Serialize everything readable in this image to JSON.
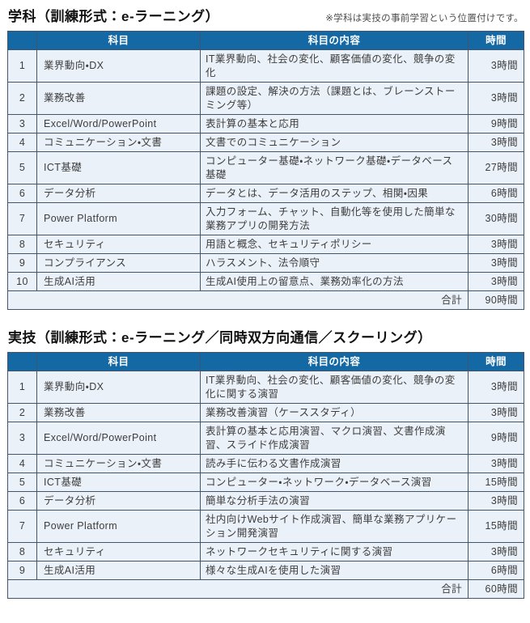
{
  "section1": {
    "title": "学科（訓練形式：e-ラーニング）",
    "note": "※学科は実技の事前学習という位置付けです。",
    "table": {
      "headers": {
        "no": "",
        "subject": "科目",
        "content": "科目の内容",
        "hours": "時間"
      },
      "rows": [
        {
          "no": "1",
          "subject": "業界動向・DX",
          "content": "IT業界動向、社会の変化、顧客価値の変化、競争の変化",
          "hours": "3時間"
        },
        {
          "no": "2",
          "subject": "業務改善",
          "content": "課題の設定、解決の方法（課題とは、ブレーンストーミング等）",
          "hours": "3時間"
        },
        {
          "no": "3",
          "subject": "Excel/Word/PowerPoint",
          "content": "表計算の基本と応用",
          "hours": "9時間"
        },
        {
          "no": "4",
          "subject": "コミュニケーション・文書",
          "content": "文書でのコミュニケーション",
          "hours": "3時間"
        },
        {
          "no": "5",
          "subject": "ICT基礎",
          "content": "コンピューター基礎・ネットワーク基礎・データベース基礎",
          "hours": "27時間"
        },
        {
          "no": "6",
          "subject": "データ分析",
          "content": "データとは、データ活用のステップ、相関・因果",
          "hours": "6時間"
        },
        {
          "no": "7",
          "subject": "Power Platform",
          "content": "入力フォーム、チャット、自動化等を使用した簡単な業務アプリの開発方法",
          "hours": "30時間"
        },
        {
          "no": "8",
          "subject": "セキュリティ",
          "content": "用語と概念、セキュリティポリシー",
          "hours": "3時間"
        },
        {
          "no": "9",
          "subject": "コンプライアンス",
          "content": "ハラスメント、法令順守",
          "hours": "3時間"
        },
        {
          "no": "10",
          "subject": "生成AI活用",
          "content": "生成AI使用上の留意点、業務効率化の方法",
          "hours": "3時間"
        }
      ],
      "total_label": "合計",
      "total_hours": "90時間"
    }
  },
  "section2": {
    "title": "実技（訓練形式：e-ラーニング／同時双方向通信／スクーリング）",
    "table": {
      "headers": {
        "no": "",
        "subject": "科目",
        "content": "科目の内容",
        "hours": "時間"
      },
      "rows": [
        {
          "no": "1",
          "subject": "業界動向・DX",
          "content": "IT業界動向、社会の変化、顧客価値の変化、競争の変化に関する演習",
          "hours": "3時間"
        },
        {
          "no": "2",
          "subject": "業務改善",
          "content": "業務改善演習（ケーススタディ）",
          "hours": "3時間"
        },
        {
          "no": "3",
          "subject": "Excel/Word/PowerPoint",
          "content": "表計算の基本と応用演習、マクロ演習、文書作成演習、スライド作成演習",
          "hours": "9時間"
        },
        {
          "no": "4",
          "subject": "コミュニケーション・文書",
          "content": "読み手に伝わる文書作成演習",
          "hours": "3時間"
        },
        {
          "no": "5",
          "subject": "ICT基礎",
          "content": "コンピューター・ネットワーク・データベース演習",
          "hours": "15時間"
        },
        {
          "no": "6",
          "subject": "データ分析",
          "content": "簡単な分析手法の演習",
          "hours": "3時間"
        },
        {
          "no": "7",
          "subject": "Power Platform",
          "content": "社内向けWebサイト作成演習、簡単な業務アプリケーション開発演習",
          "hours": "15時間"
        },
        {
          "no": "8",
          "subject": "セキュリティ",
          "content": "ネットワークセキュリティに関する演習",
          "hours": "3時間"
        },
        {
          "no": "9",
          "subject": "生成AI活用",
          "content": "様々な生成AIを使用した演習",
          "hours": "6時間"
        }
      ],
      "total_label": "合計",
      "total_hours": "60時間"
    }
  },
  "colors": {
    "header_bg": "#1469A5",
    "cell_bg": "#EBF1F9",
    "border": "#44546A"
  }
}
